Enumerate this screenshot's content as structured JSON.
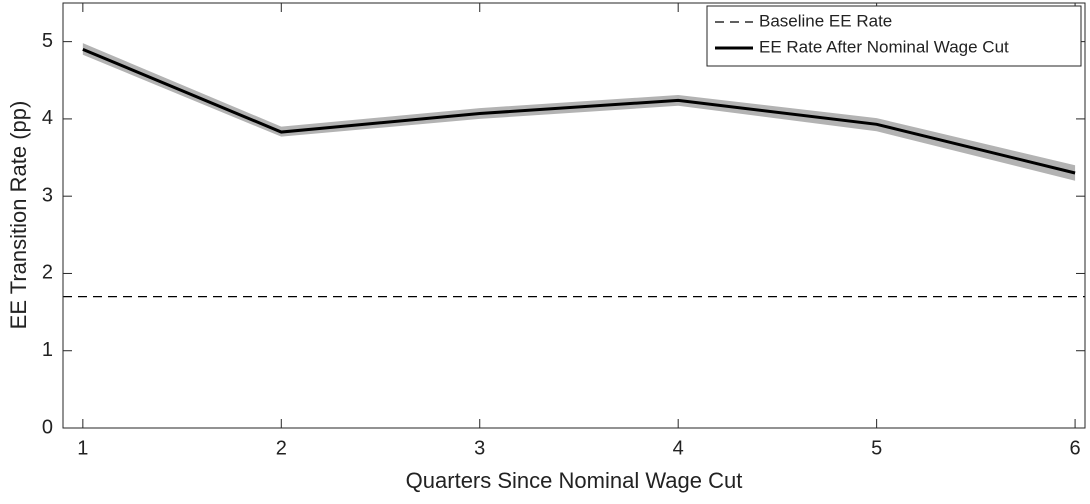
{
  "chart_data": {
    "type": "line",
    "xlabel": "Quarters Since Nominal Wage Cut",
    "ylabel": "EE Transition Rate (pp)",
    "x": [
      1,
      2,
      3,
      4,
      5,
      6
    ],
    "xlim": [
      0.9,
      6.05
    ],
    "xticks": [
      1,
      2,
      3,
      4,
      5,
      6
    ],
    "ylim": [
      0,
      5.5
    ],
    "yticks": [
      0,
      1,
      2,
      3,
      4,
      5
    ],
    "reference_line": {
      "name": "Baseline EE Rate",
      "value": 1.7,
      "color": "#000000",
      "dashed": true
    },
    "series": [
      {
        "name": "EE Rate After Nominal Wage Cut",
        "color": "#000000",
        "band_color": "#b3b3b3",
        "values": [
          4.9,
          3.83,
          4.07,
          4.24,
          3.93,
          3.3
        ],
        "upper": [
          4.98,
          3.9,
          4.14,
          4.31,
          4.01,
          3.4
        ],
        "lower": [
          4.83,
          3.77,
          4.0,
          4.17,
          3.84,
          3.2
        ]
      }
    ],
    "legend": "upper right"
  }
}
